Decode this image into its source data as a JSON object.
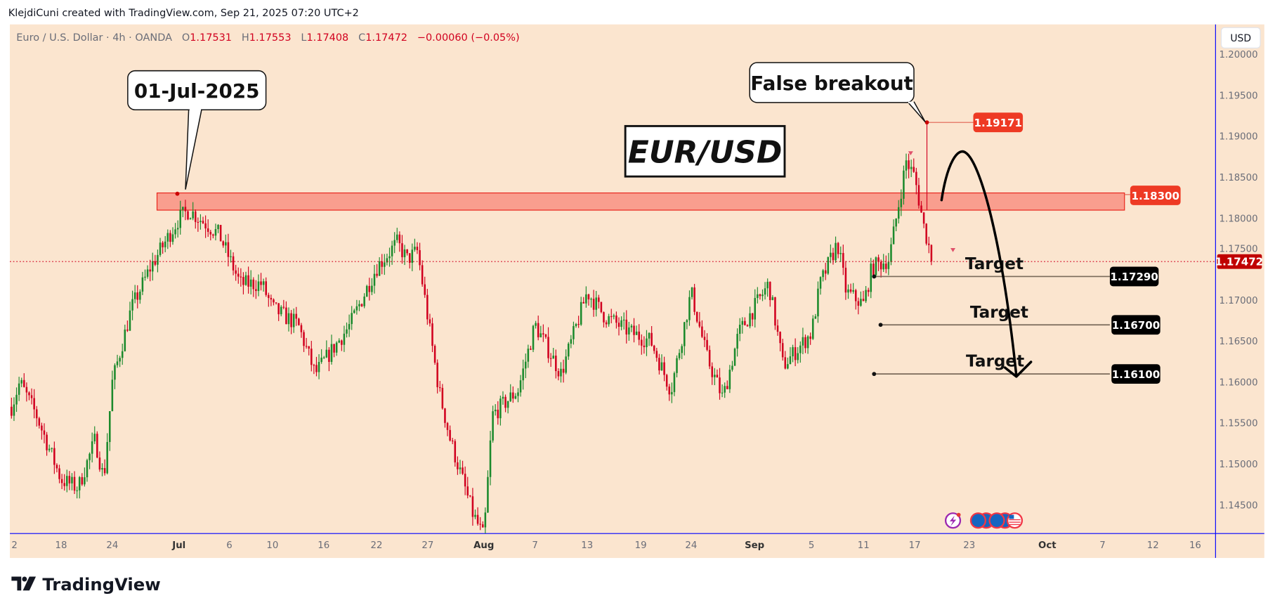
{
  "header": {
    "created_by": "KlejdiCuni created with TradingView.com, Sep 21, 2025 07:20 UTC+2",
    "symbol": "Euro / U.S. Dollar · 4h · OANDA",
    "open_label": "O",
    "open": "1.17531",
    "high_label": "H",
    "high": "1.17553",
    "low_label": "L",
    "low": "1.17408",
    "close_label": "C",
    "close": "1.17472",
    "change": "−0.00060 (−0.05%)"
  },
  "currency_button": "USD",
  "logo_text": "TradingView",
  "colors": {
    "background": "#fbe5cf",
    "up": "#1b8a2c",
    "down": "#d1001f",
    "zone": "#f99e8e",
    "label_red": "#ee3a24",
    "label_black": "#000000",
    "axis_border": "#0000ff"
  },
  "event_icons": [
    "lightning-icon",
    "eu-flag-icon",
    "eu-flag-icon",
    "eu-flag-icon",
    "us-flag-icon"
  ],
  "chart_data": {
    "type": "candlestick",
    "timeframe": "4h",
    "y_ticks": [
      "1.20000",
      "1.19500",
      "1.19000",
      "1.18500",
      "1.18000",
      "1.17500",
      "1.17000",
      "1.16500",
      "1.16000",
      "1.15500",
      "1.15000",
      "1.14500"
    ],
    "ylim": [
      1.1425,
      1.2015
    ],
    "x_ticks": [
      {
        "date": "2025-06-12",
        "label": "2",
        "bold": false
      },
      {
        "date": "2025-06-18",
        "label": "18",
        "bold": false
      },
      {
        "date": "2025-06-24",
        "label": "24",
        "bold": false
      },
      {
        "date": "2025-07-01",
        "label": "Jul",
        "bold": true
      },
      {
        "date": "2025-07-06",
        "label": "6",
        "bold": false
      },
      {
        "date": "2025-07-10",
        "label": "10",
        "bold": false
      },
      {
        "date": "2025-07-16",
        "label": "16",
        "bold": false
      },
      {
        "date": "2025-07-22",
        "label": "22",
        "bold": false
      },
      {
        "date": "2025-07-27",
        "label": "27",
        "bold": false
      },
      {
        "date": "2025-08-01",
        "label": "Aug",
        "bold": true
      },
      {
        "date": "2025-08-07",
        "label": "7",
        "bold": false
      },
      {
        "date": "2025-08-13",
        "label": "13",
        "bold": false
      },
      {
        "date": "2025-08-19",
        "label": "19",
        "bold": false
      },
      {
        "date": "2025-08-24",
        "label": "24",
        "bold": false
      },
      {
        "date": "2025-09-01",
        "label": "Sep",
        "bold": true
      },
      {
        "date": "2025-09-05",
        "label": "5",
        "bold": false
      },
      {
        "date": "2025-09-11",
        "label": "11",
        "bold": false
      },
      {
        "date": "2025-09-17",
        "label": "17",
        "bold": false
      },
      {
        "date": "2025-09-23",
        "label": "23",
        "bold": false
      },
      {
        "date": "2025-10-01",
        "label": "Oct",
        "bold": true
      },
      {
        "date": "2025-10-07",
        "label": "7",
        "bold": false
      },
      {
        "date": "2025-10-12",
        "label": "12",
        "bold": false
      },
      {
        "date": "2025-10-16",
        "label": "16",
        "bold": false
      }
    ],
    "price_path": [
      [
        "2025-06-12",
        1.157
      ],
      [
        "2025-06-13",
        1.16
      ],
      [
        "2025-06-15",
        1.156
      ],
      [
        "2025-06-18",
        1.1481
      ],
      [
        "2025-06-20",
        1.1471
      ],
      [
        "2025-06-22",
        1.153
      ],
      [
        "2025-06-23",
        1.1481
      ],
      [
        "2025-06-24",
        1.16
      ],
      [
        "2025-06-26",
        1.169
      ],
      [
        "2025-06-28",
        1.174
      ],
      [
        "2025-07-01",
        1.18
      ],
      [
        "2025-07-02",
        1.181
      ],
      [
        "2025-07-04",
        1.179
      ],
      [
        "2025-07-05",
        1.178
      ],
      [
        "2025-07-07",
        1.172
      ],
      [
        "2025-07-09",
        1.172
      ],
      [
        "2025-07-10",
        1.169
      ],
      [
        "2025-07-13",
        1.167
      ],
      [
        "2025-07-15",
        1.161
      ],
      [
        "2025-07-17",
        1.164
      ],
      [
        "2025-07-19",
        1.167
      ],
      [
        "2025-07-22",
        1.174
      ],
      [
        "2025-07-24",
        1.177
      ],
      [
        "2025-07-25",
        1.175
      ],
      [
        "2025-07-26",
        1.176
      ],
      [
        "2025-07-28",
        1.159
      ],
      [
        "2025-07-29",
        1.153
      ],
      [
        "2025-07-31",
        1.144
      ],
      [
        "2025-08-01",
        1.141
      ],
      [
        "2025-08-02",
        1.156
      ],
      [
        "2025-08-05",
        1.159
      ],
      [
        "2025-08-07",
        1.167
      ],
      [
        "2025-08-10",
        1.161
      ],
      [
        "2025-08-13",
        1.171
      ],
      [
        "2025-08-15",
        1.168
      ],
      [
        "2025-08-18",
        1.166
      ],
      [
        "2025-08-20",
        1.165
      ],
      [
        "2025-08-22",
        1.159
      ],
      [
        "2025-08-24",
        1.171
      ],
      [
        "2025-08-26",
        1.163
      ],
      [
        "2025-08-28",
        1.158
      ],
      [
        "2025-08-30",
        1.166
      ],
      [
        "2025-09-02",
        1.172
      ],
      [
        "2025-09-03",
        1.162
      ],
      [
        "2025-09-05",
        1.166
      ],
      [
        "2025-09-06",
        1.172
      ],
      [
        "2025-09-08",
        1.177
      ],
      [
        "2025-09-09",
        1.171
      ],
      [
        "2025-09-11",
        1.1695
      ],
      [
        "2025-09-12",
        1.174
      ],
      [
        "2025-09-14",
        1.175
      ],
      [
        "2025-09-16",
        1.187
      ],
      [
        "2025-09-17",
        1.185
      ],
      [
        "2025-09-18",
        1.179
      ],
      [
        "2025-09-19",
        1.1747
      ]
    ],
    "current_price": "1.17472",
    "annotations": {
      "title": "EUR/USD",
      "callout_left": {
        "text": "01-Jul-2025",
        "date": "2025-07-01",
        "price": 1.183
      },
      "callout_right": {
        "text": "False breakout",
        "date": "2025-09-17",
        "price": 1.19171
      },
      "resistance_zone": {
        "top": 1.1831,
        "bottom": 1.181,
        "label": "1.18300"
      },
      "false_breakout_high": {
        "label": "1.19171",
        "price": 1.19171
      },
      "targets": [
        {
          "text": "Target",
          "price": 1.1729,
          "label": "1.17290"
        },
        {
          "text": "Target",
          "price": 1.167,
          "label": "1.16700"
        },
        {
          "text": "Target",
          "price": 1.161,
          "label": "1.16100"
        }
      ]
    }
  }
}
